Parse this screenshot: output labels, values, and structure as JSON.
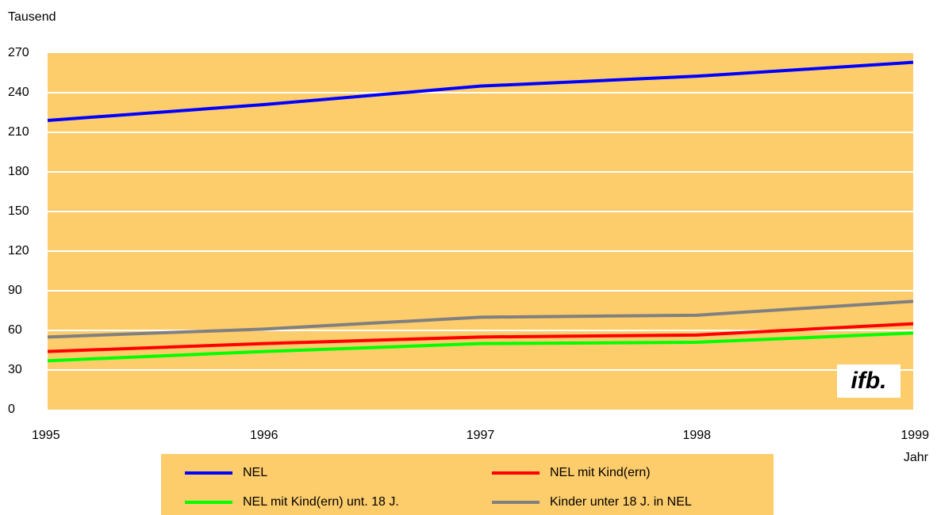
{
  "chart_data": {
    "type": "line",
    "y_label": "Tausend",
    "x_label": "Jahr",
    "logo": "ifb.",
    "categories": [
      "1995",
      "1996",
      "1997",
      "1998",
      "1999"
    ],
    "ylim": [
      0,
      270
    ],
    "yticks": [
      0,
      30,
      60,
      90,
      120,
      150,
      180,
      210,
      240,
      270
    ],
    "grid": true,
    "legend": "bottom",
    "series": [
      {
        "name": "NEL",
        "color": "#0000ff",
        "values": [
          219,
          231,
          245,
          252.5,
          263
        ]
      },
      {
        "name": "NEL mit Kind(ern)",
        "color": "#ff0000",
        "values": [
          44,
          50,
          55,
          56.5,
          65
        ]
      },
      {
        "name": "NEL mit Kind(ern) unt. 18 J.",
        "color": "#00ff00",
        "values": [
          37,
          44,
          50,
          51,
          58
        ]
      },
      {
        "name": "Kinder unter 18 J. in NEL",
        "color": "#808080",
        "values": [
          55,
          61,
          70,
          71.5,
          82
        ]
      }
    ]
  }
}
